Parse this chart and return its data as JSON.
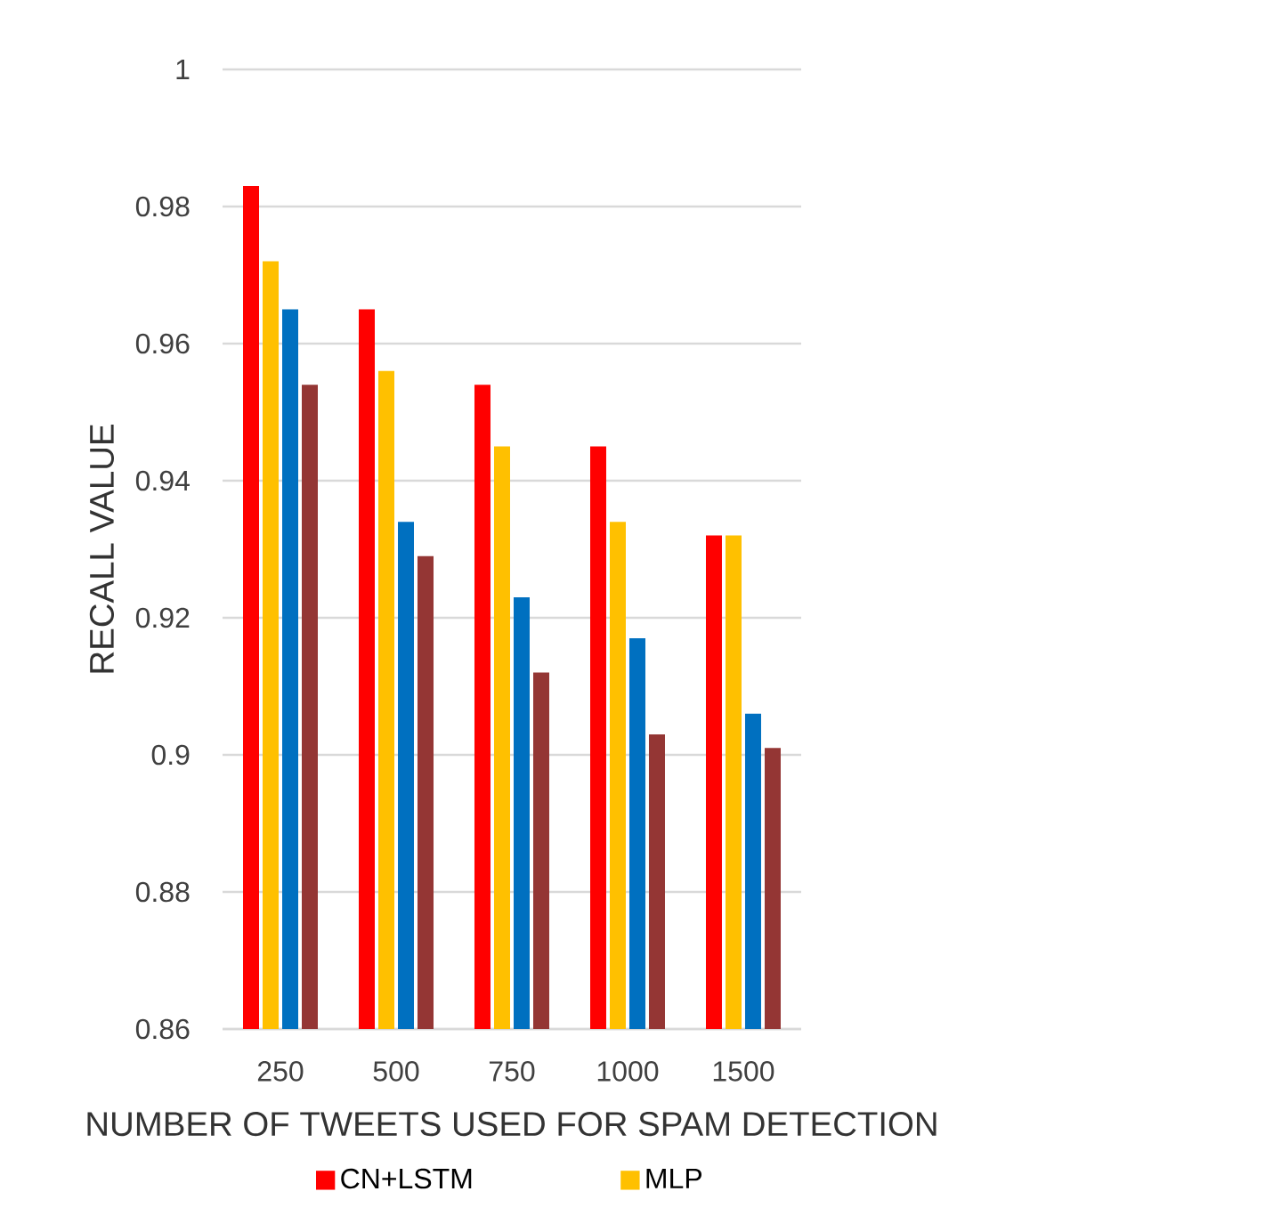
{
  "chart_data": {
    "type": "bar",
    "xlabel": "NUMBER OF TWEETS USED FOR SPAM DETECTION",
    "ylabel": "RECALL VALUE",
    "categories": [
      "250",
      "500",
      "750",
      "1000",
      "1500"
    ],
    "series": [
      {
        "name": "CN+LSTM",
        "color": "#ff0000",
        "values": [
          0.983,
          0.965,
          0.954,
          0.945,
          0.932
        ]
      },
      {
        "name": "MLP",
        "color": "#ffc000",
        "values": [
          0.972,
          0.956,
          0.945,
          0.934,
          0.932
        ]
      },
      {
        "color": "#0070c0",
        "values": [
          0.965,
          0.934,
          0.923,
          0.917,
          0.906
        ]
      },
      {
        "color": "#943634",
        "values": [
          0.954,
          0.929,
          0.912,
          0.903,
          0.901
        ]
      }
    ],
    "ylim": [
      0.86,
      1
    ],
    "yticks": [
      0.86,
      0.88,
      0.9,
      0.92,
      0.94,
      0.96,
      0.98,
      1
    ],
    "grid": "y",
    "legend": "bottom"
  }
}
